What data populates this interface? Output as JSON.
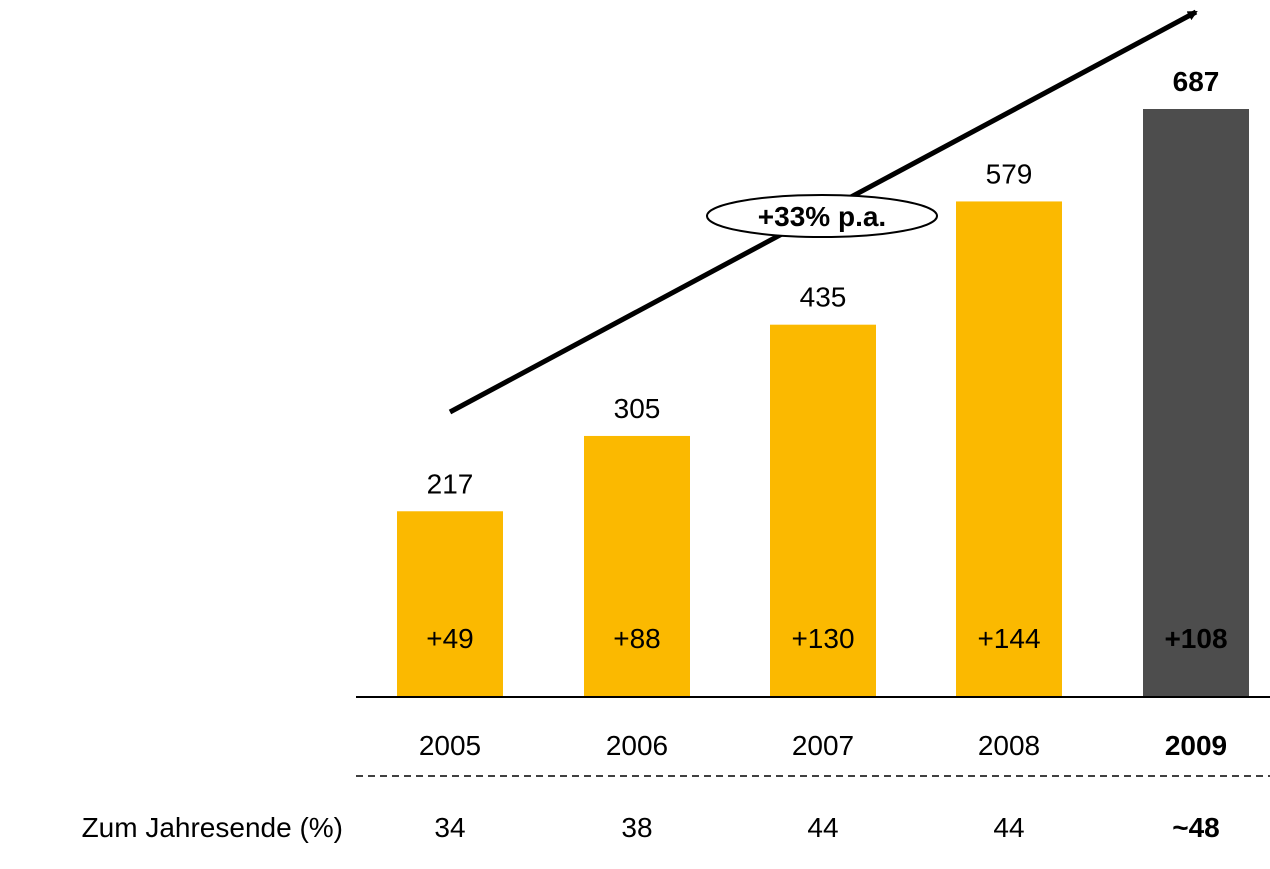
{
  "chart_data": {
    "type": "bar",
    "categories": [
      "2005",
      "2006",
      "2007",
      "2008",
      "2009"
    ],
    "values": [
      217,
      305,
      435,
      579,
      687
    ],
    "increments": [
      "+49",
      "+88",
      "+130",
      "+144",
      "+108"
    ],
    "highlight_index": 4,
    "bar_colors": {
      "default": "#FBB900",
      "highlight": "#4D4D4D"
    },
    "increment_text_colors": {
      "default": "#000000",
      "highlight": "#FFFFFF"
    },
    "growth_annotation": "+33% p.a.",
    "row_label": "Zum Jahresende (%)",
    "row_values": [
      "34",
      "38",
      "44",
      "44",
      "~48"
    ],
    "ylim": [
      0,
      687
    ],
    "grid": false,
    "legend": "none"
  }
}
